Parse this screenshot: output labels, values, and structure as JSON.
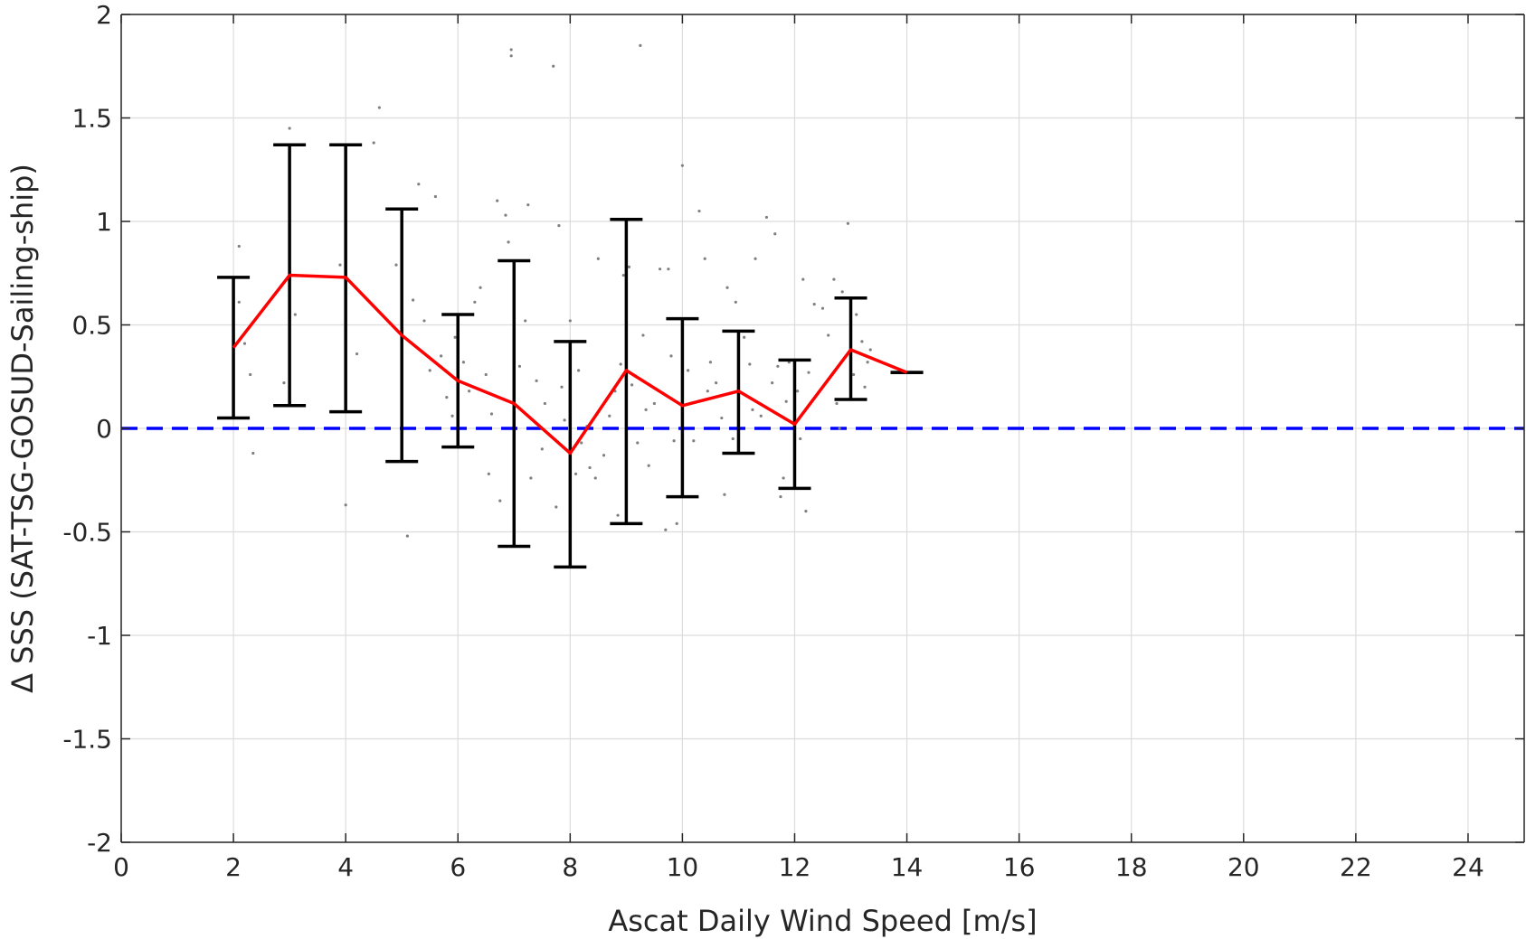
{
  "chart_data": {
    "type": "line",
    "xlabel": "Ascat Daily Wind Speed [m/s]",
    "ylabel": "Δ SSS (SAT-TSG-GOSUD-Sailing-ship)",
    "xlim": [
      0,
      25
    ],
    "ylim": [
      -2,
      2
    ],
    "xticks": [
      0,
      2,
      4,
      6,
      8,
      10,
      12,
      14,
      16,
      18,
      20,
      22,
      24
    ],
    "yticks": [
      -2,
      -1.5,
      -1,
      -0.5,
      0,
      0.5,
      1,
      1.5,
      2
    ],
    "grid": true,
    "reference_line": {
      "y": 0,
      "color": "#0000ff",
      "style": "dashed"
    },
    "mean_line": {
      "color": "#ff0000",
      "x": [
        2,
        3,
        4,
        5,
        6,
        7,
        8,
        9,
        10,
        11,
        12,
        13,
        14
      ],
      "y": [
        0.39,
        0.74,
        0.73,
        0.45,
        0.23,
        0.12,
        -0.12,
        0.28,
        0.11,
        0.18,
        0.02,
        0.38,
        0.27
      ]
    },
    "error_bars": {
      "color": "#000000",
      "x": [
        2,
        3,
        4,
        5,
        6,
        7,
        8,
        9,
        10,
        11,
        12,
        13,
        14
      ],
      "lower": [
        0.05,
        0.11,
        0.08,
        -0.16,
        -0.09,
        -0.57,
        -0.67,
        -0.46,
        -0.33,
        -0.12,
        -0.29,
        0.14,
        0.27
      ],
      "upper": [
        0.73,
        1.37,
        1.37,
        1.06,
        0.55,
        0.81,
        0.42,
        1.01,
        0.53,
        0.47,
        0.33,
        0.63,
        0.27
      ]
    },
    "scatter": {
      "color": "#808080",
      "points": [
        [
          2.1,
          0.88
        ],
        [
          2.2,
          0.41
        ],
        [
          2.3,
          0.26
        ],
        [
          2.35,
          -0.12
        ],
        [
          2.1,
          0.61
        ],
        [
          3.0,
          1.45
        ],
        [
          3.1,
          0.55
        ],
        [
          2.9,
          0.22
        ],
        [
          3.9,
          0.79
        ],
        [
          4.2,
          0.36
        ],
        [
          4.0,
          -0.37
        ],
        [
          4.5,
          1.38
        ],
        [
          4.6,
          1.55
        ],
        [
          4.9,
          0.79
        ],
        [
          5.1,
          -0.52
        ],
        [
          5.3,
          1.18
        ],
        [
          5.4,
          0.52
        ],
        [
          5.5,
          0.28
        ],
        [
          5.2,
          0.62
        ],
        [
          5.6,
          1.12
        ],
        [
          5.7,
          0.35
        ],
        [
          5.8,
          0.15
        ],
        [
          5.9,
          0.06
        ],
        [
          6.0,
          0.52
        ],
        [
          6.1,
          0.32
        ],
        [
          6.2,
          0.18
        ],
        [
          5.95,
          0.44
        ],
        [
          6.3,
          0.61
        ],
        [
          6.4,
          0.68
        ],
        [
          6.5,
          0.26
        ],
        [
          6.6,
          0.07
        ],
        [
          6.7,
          1.1
        ],
        [
          6.85,
          1.03
        ],
        [
          6.55,
          -0.22
        ],
        [
          6.75,
          -0.35
        ],
        [
          6.9,
          0.9
        ],
        [
          7.0,
          -0.03
        ],
        [
          7.1,
          0.3
        ],
        [
          7.2,
          0.52
        ],
        [
          7.25,
          1.08
        ],
        [
          7.3,
          -0.24
        ],
        [
          7.4,
          0.23
        ],
        [
          7.5,
          -0.1
        ],
        [
          7.55,
          0.12
        ],
        [
          6.95,
          1.83
        ],
        [
          6.95,
          1.8
        ],
        [
          7.7,
          1.75
        ],
        [
          7.8,
          0.98
        ],
        [
          7.75,
          -0.38
        ],
        [
          7.85,
          0.2
        ],
        [
          7.9,
          0.04
        ],
        [
          8.0,
          0.52
        ],
        [
          8.1,
          -0.22
        ],
        [
          8.15,
          0.28
        ],
        [
          8.2,
          -0.07
        ],
        [
          8.3,
          0.01
        ],
        [
          8.35,
          -0.19
        ],
        [
          8.45,
          -0.24
        ],
        [
          8.5,
          0.82
        ],
        [
          8.6,
          -0.13
        ],
        [
          8.7,
          0.06
        ],
        [
          8.8,
          0.18
        ],
        [
          8.9,
          0.31
        ],
        [
          8.95,
          0.74
        ],
        [
          8.85,
          -0.42
        ],
        [
          9.0,
          0.6
        ],
        [
          9.05,
          0.78
        ],
        [
          9.1,
          0.21
        ],
        [
          9.2,
          -0.07
        ],
        [
          9.25,
          1.85
        ],
        [
          9.3,
          0.45
        ],
        [
          9.35,
          0.09
        ],
        [
          9.4,
          -0.18
        ],
        [
          9.5,
          0.12
        ],
        [
          9.6,
          0.77
        ],
        [
          9.7,
          -0.49
        ],
        [
          9.75,
          0.77
        ],
        [
          9.8,
          0.35
        ],
        [
          9.85,
          -0.06
        ],
        [
          9.9,
          -0.46
        ],
        [
          10.0,
          1.27
        ],
        [
          10.1,
          0.28
        ],
        [
          10.2,
          -0.06
        ],
        [
          10.3,
          1.05
        ],
        [
          10.4,
          0.82
        ],
        [
          10.45,
          0.18
        ],
        [
          10.5,
          0.32
        ],
        [
          10.6,
          0.22
        ],
        [
          10.7,
          0.05
        ],
        [
          10.8,
          0.68
        ],
        [
          10.9,
          -0.05
        ],
        [
          10.75,
          -0.32
        ],
        [
          10.95,
          0.61
        ],
        [
          11.0,
          0.2
        ],
        [
          11.1,
          0.44
        ],
        [
          11.2,
          0.31
        ],
        [
          11.25,
          0.09
        ],
        [
          11.3,
          0.82
        ],
        [
          11.4,
          0.06
        ],
        [
          11.5,
          1.02
        ],
        [
          11.6,
          0.22
        ],
        [
          11.65,
          0.94
        ],
        [
          11.7,
          0.3
        ],
        [
          11.75,
          -0.33
        ],
        [
          11.8,
          -0.24
        ],
        [
          11.85,
          0.13
        ],
        [
          11.9,
          0.32
        ],
        [
          12.0,
          0.31
        ],
        [
          12.05,
          0.18
        ],
        [
          12.1,
          -0.05
        ],
        [
          12.15,
          0.72
        ],
        [
          12.2,
          -0.4
        ],
        [
          12.25,
          0.27
        ],
        [
          12.35,
          0.6
        ],
        [
          12.5,
          0.58
        ],
        [
          12.6,
          0.45
        ],
        [
          12.7,
          0.72
        ],
        [
          12.75,
          0.12
        ],
        [
          12.85,
          0.66
        ],
        [
          12.95,
          0.99
        ],
        [
          12.8,
          0.0
        ],
        [
          13.05,
          0.26
        ],
        [
          13.1,
          0.55
        ],
        [
          13.2,
          0.42
        ],
        [
          13.3,
          0.32
        ],
        [
          13.35,
          0.38
        ],
        [
          13.25,
          0.2
        ]
      ]
    }
  }
}
